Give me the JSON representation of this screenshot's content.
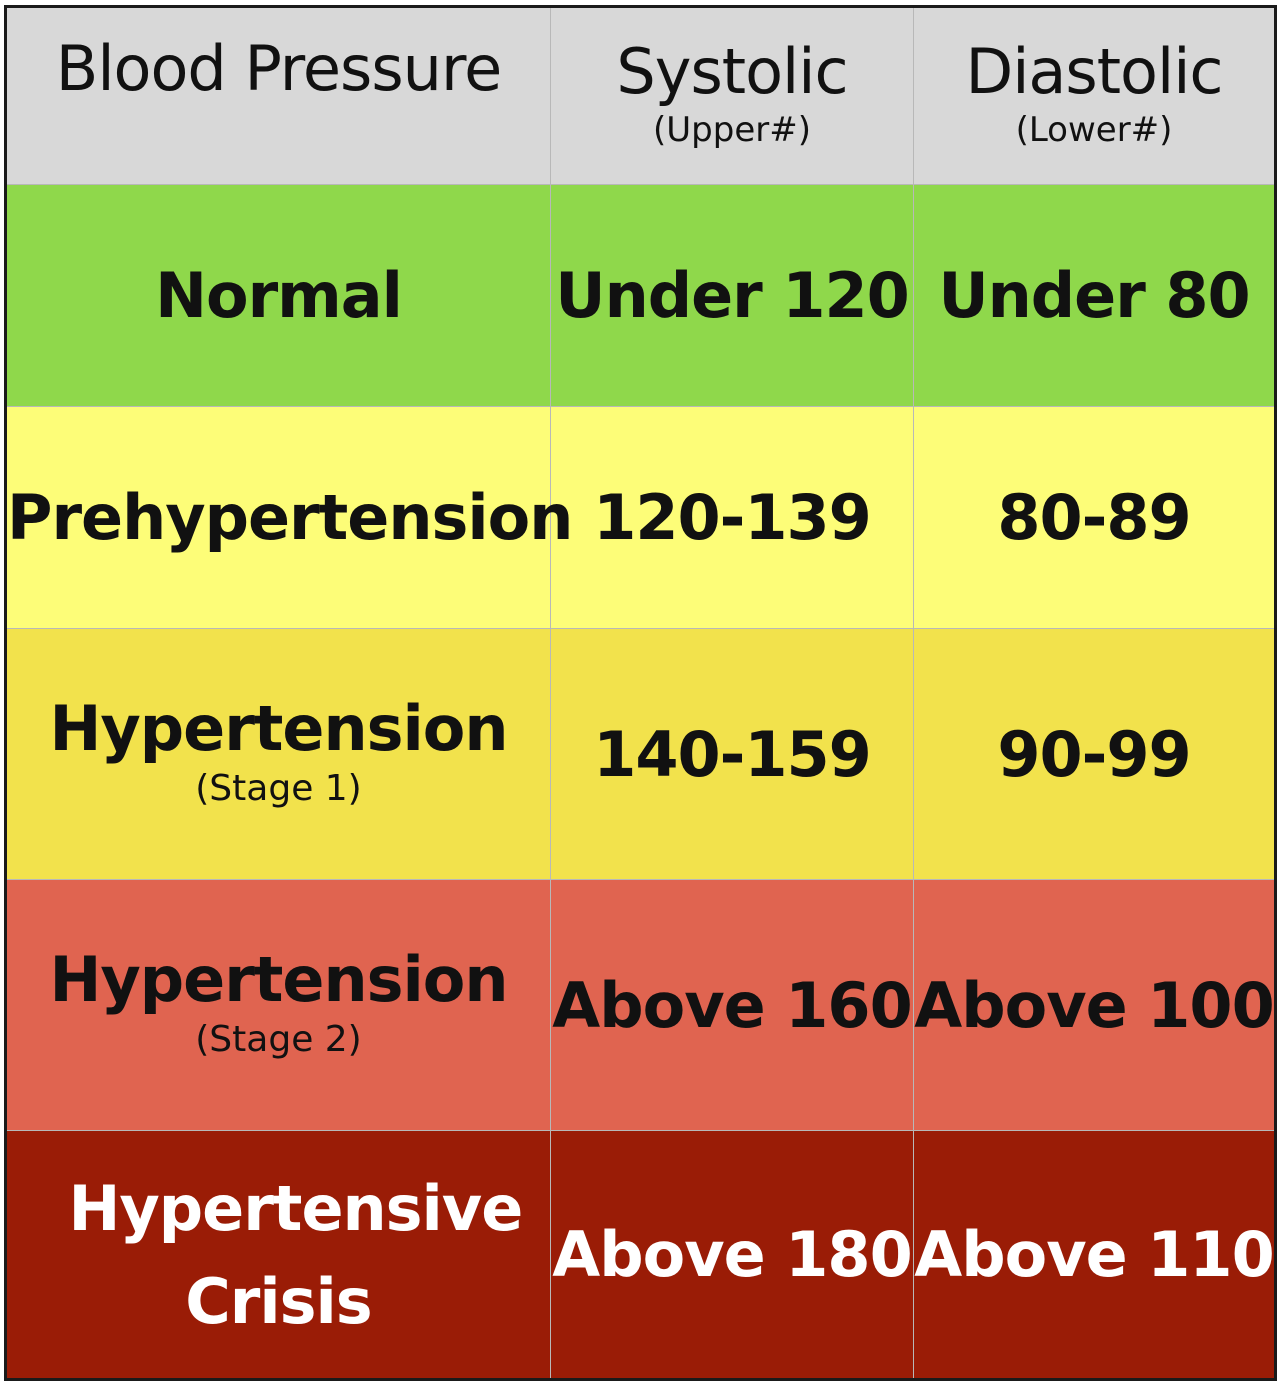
{
  "chart_data": {
    "type": "table",
    "title": "",
    "columns": [
      {
        "label": "Blood Pressure",
        "sublabel": ""
      },
      {
        "label": "Systolic",
        "sublabel": "(Upper#)"
      },
      {
        "label": "Diastolic",
        "sublabel": "(Lower#)"
      }
    ],
    "rows": [
      {
        "category": "Normal",
        "stage": "",
        "systolic": "Under 120",
        "diastolic": "Under 80",
        "color": "#8fd84b"
      },
      {
        "category": "Prehypertension",
        "stage": "",
        "systolic": "120-139",
        "diastolic": "80-89",
        "color": "#fdfd78"
      },
      {
        "category": "Hypertension",
        "stage": "(Stage 1)",
        "systolic": "140-159",
        "diastolic": "90-99",
        "color": "#f2e24c"
      },
      {
        "category": "Hypertension",
        "stage": "(Stage 2)",
        "systolic": "Above 160",
        "diastolic": "Above 100",
        "color": "#e06450"
      },
      {
        "category": "Hypertensive Crisis",
        "stage": "",
        "systolic": "Above 180",
        "diastolic": "Above 110",
        "color": "#9a1c06"
      }
    ]
  },
  "colors": {
    "header_bg": "#d8d8d8",
    "text_dark": "#111111",
    "text_light": "#ffffff"
  }
}
